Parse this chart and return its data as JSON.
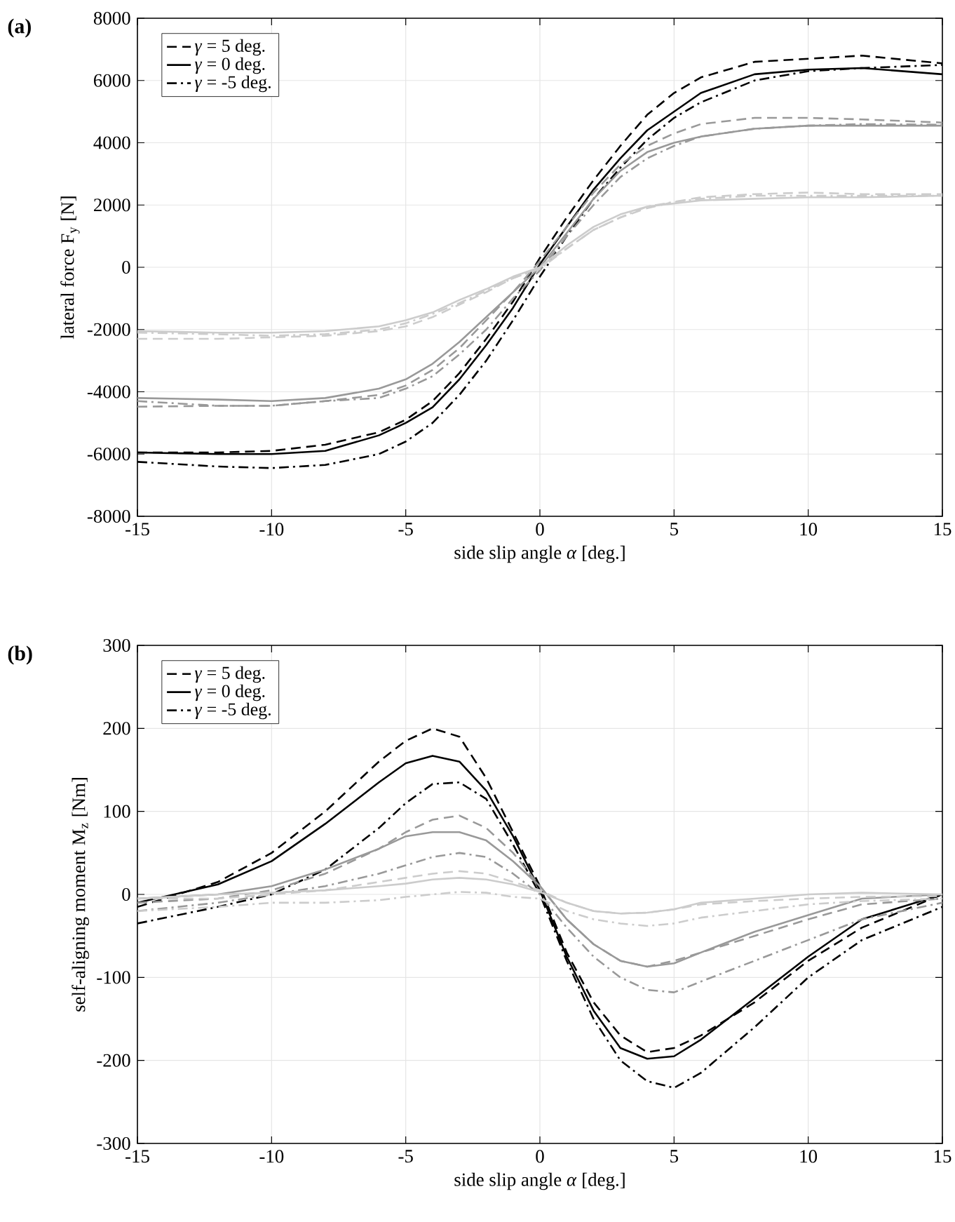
{
  "chart_data": [
    {
      "type": "line",
      "title": "(a)",
      "xlabel": "side slip angle *α* [deg.]",
      "ylabel": "lateral force F$_{y}$ [N]",
      "xlim": [
        -15,
        15
      ],
      "ylim": [
        -8000,
        8000
      ],
      "xticks": [
        -15,
        -10,
        -5,
        0,
        5,
        10,
        15
      ],
      "yticks": [
        -8000,
        -6000,
        -4000,
        -2000,
        0,
        2000,
        4000,
        6000,
        8000
      ],
      "grid": true,
      "legend": "top left",
      "marker": "none",
      "x": [
        -15,
        -12,
        -10,
        -8,
        -6,
        -5,
        -4,
        -3,
        -2,
        -1,
        0,
        1,
        2,
        3,
        4,
        5,
        6,
        8,
        10,
        12,
        15
      ],
      "series": [
        {
          "name": "*γ* = 5 deg.",
          "color": "#000000",
          "line_style": "dashed",
          "values": [
            -5950,
            -5950,
            -5900,
            -5700,
            -5300,
            -4900,
            -4300,
            -3400,
            -2300,
            -1100,
            300,
            1600,
            2800,
            3900,
            4900,
            5600,
            6100,
            6600,
            6700,
            6800,
            6550
          ]
        },
        {
          "name": "*γ* = 0 deg.",
          "color": "#000000",
          "line_style": "solid",
          "values": [
            -5950,
            -6000,
            -6000,
            -5900,
            -5400,
            -5000,
            -4500,
            -3600,
            -2500,
            -1300,
            100,
            1300,
            2500,
            3500,
            4400,
            5000,
            5600,
            6200,
            6350,
            6400,
            6200
          ]
        },
        {
          "name": "*γ* = -5 deg.",
          "color": "#000000",
          "line_style": "dashdot",
          "values": [
            -6250,
            -6400,
            -6450,
            -6350,
            -6000,
            -5600,
            -5000,
            -4100,
            -3000,
            -1700,
            -300,
            1000,
            2200,
            3200,
            4100,
            4800,
            5300,
            6000,
            6300,
            6400,
            6500
          ]
        },
        {
          "color": "#999999",
          "line_style": "dashed",
          "values": [
            -4480,
            -4450,
            -4450,
            -4300,
            -4100,
            -3800,
            -3300,
            -2600,
            -1700,
            -800,
            200,
            1300,
            2400,
            3300,
            3900,
            4300,
            4600,
            4800,
            4800,
            4750,
            4650
          ]
        },
        {
          "color": "#999999",
          "line_style": "solid",
          "values": [
            -4200,
            -4250,
            -4300,
            -4200,
            -3900,
            -3600,
            -3100,
            -2400,
            -1600,
            -800,
            0,
            1100,
            2200,
            3100,
            3700,
            4000,
            4200,
            4450,
            4550,
            4550,
            4550
          ]
        },
        {
          "color": "#999999",
          "line_style": "dashdot",
          "values": [
            -4300,
            -4450,
            -4450,
            -4300,
            -4200,
            -3900,
            -3500,
            -2800,
            -2000,
            -1000,
            -100,
            1000,
            2000,
            2900,
            3500,
            3900,
            4200,
            4450,
            4550,
            4600,
            4580
          ]
        },
        {
          "color": "#cccccc",
          "line_style": "dashed",
          "values": [
            -2300,
            -2300,
            -2250,
            -2200,
            -2050,
            -1900,
            -1600,
            -1200,
            -800,
            -350,
            0,
            600,
            1200,
            1600,
            1900,
            2100,
            2250,
            2350,
            2400,
            2350,
            2350
          ]
        },
        {
          "color": "#cccccc",
          "line_style": "solid",
          "values": [
            -2050,
            -2100,
            -2100,
            -2050,
            -1900,
            -1700,
            -1450,
            -1050,
            -700,
            -300,
            0,
            700,
            1300,
            1700,
            1950,
            2050,
            2150,
            2200,
            2250,
            2250,
            2300
          ]
        },
        {
          "color": "#cccccc",
          "line_style": "dashdot",
          "values": [
            -2100,
            -2150,
            -2200,
            -2150,
            -2000,
            -1800,
            -1500,
            -1150,
            -750,
            -350,
            -50,
            600,
            1200,
            1600,
            1950,
            2100,
            2200,
            2300,
            2300,
            2300,
            2300
          ]
        }
      ]
    },
    {
      "type": "line",
      "title": "(b)",
      "xlabel": "side slip angle *α* [deg.]",
      "ylabel": "self-aligning moment M$_{z}$ [Nm]",
      "xlim": [
        -15,
        15
      ],
      "ylim": [
        -300,
        300
      ],
      "xticks": [
        -15,
        -10,
        -5,
        0,
        5,
        10,
        15
      ],
      "yticks": [
        -300,
        -200,
        -100,
        0,
        100,
        200,
        300
      ],
      "grid": true,
      "legend": "top left",
      "marker": "none",
      "x": [
        -15,
        -12,
        -10,
        -8,
        -6,
        -5,
        -4,
        -3,
        -2,
        -1,
        0,
        1,
        2,
        3,
        4,
        5,
        6,
        8,
        10,
        12,
        15
      ],
      "series": [
        {
          "name": "*γ* = 5 deg.",
          "color": "#000000",
          "line_style": "dashed",
          "values": [
            -15,
            15,
            50,
            100,
            160,
            185,
            200,
            190,
            140,
            75,
            10,
            -70,
            -130,
            -170,
            -190,
            -185,
            -170,
            -130,
            -80,
            -40,
            0
          ]
        },
        {
          "name": "*γ* = 0 deg.",
          "color": "#000000",
          "line_style": "solid",
          "values": [
            -10,
            12,
            40,
            85,
            135,
            158,
            167,
            160,
            125,
            70,
            5,
            -75,
            -140,
            -185,
            -198,
            -195,
            -175,
            -125,
            -75,
            -30,
            0
          ]
        },
        {
          "name": "*γ* = -5 deg.",
          "color": "#000000",
          "line_style": "dashdot",
          "values": [
            -35,
            -15,
            0,
            30,
            80,
            110,
            133,
            135,
            115,
            60,
            0,
            -80,
            -150,
            -200,
            -225,
            -233,
            -215,
            -160,
            -100,
            -55,
            -15
          ]
        },
        {
          "color": "#999999",
          "line_style": "dashed",
          "values": [
            -10,
            -5,
            5,
            25,
            55,
            75,
            90,
            95,
            80,
            50,
            10,
            -30,
            -60,
            -80,
            -87,
            -80,
            -70,
            -50,
            -30,
            -12,
            -5
          ]
        },
        {
          "color": "#999999",
          "line_style": "solid",
          "values": [
            -5,
            0,
            10,
            30,
            55,
            70,
            75,
            75,
            65,
            40,
            10,
            -30,
            -60,
            -80,
            -87,
            -83,
            -70,
            -45,
            -25,
            -5,
            0
          ]
        },
        {
          "color": "#999999",
          "line_style": "dashdot",
          "values": [
            -20,
            -10,
            0,
            10,
            25,
            35,
            45,
            50,
            45,
            25,
            0,
            -40,
            -75,
            -100,
            -115,
            -118,
            -105,
            -80,
            -55,
            -30,
            -10
          ]
        },
        {
          "color": "#cccccc",
          "line_style": "dashed",
          "values": [
            -5,
            -5,
            0,
            5,
            15,
            20,
            25,
            28,
            25,
            15,
            5,
            -10,
            -20,
            -23,
            -22,
            -18,
            -12,
            -8,
            -5,
            -3,
            -2
          ]
        },
        {
          "color": "#cccccc",
          "line_style": "solid",
          "values": [
            -5,
            0,
            2,
            5,
            10,
            13,
            18,
            20,
            18,
            12,
            3,
            -10,
            -20,
            -23,
            -22,
            -18,
            -10,
            -5,
            0,
            2,
            0
          ]
        },
        {
          "color": "#cccccc",
          "line_style": "dashdot",
          "values": [
            -20,
            -15,
            -10,
            -10,
            -7,
            -3,
            0,
            3,
            2,
            -3,
            -5,
            -20,
            -30,
            -35,
            -38,
            -35,
            -28,
            -20,
            -12,
            -8,
            -5
          ]
        }
      ]
    }
  ]
}
